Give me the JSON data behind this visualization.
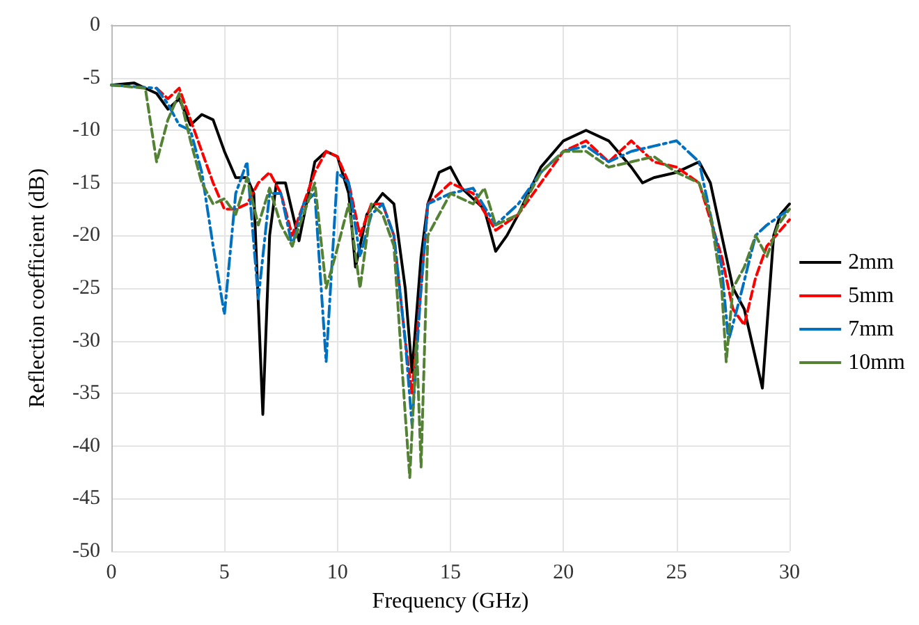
{
  "chart_data": {
    "type": "line",
    "xlabel": "Frequency (GHz)",
    "ylabel": "Reflection coefficient (dB)",
    "xlim": [
      0,
      30
    ],
    "xticks": [
      0,
      5,
      10,
      15,
      20,
      25,
      30
    ],
    "ylim": [
      -50,
      0
    ],
    "yticks": [
      -50,
      -45,
      -40,
      -35,
      -30,
      -25,
      -20,
      -15,
      -10,
      -5,
      0
    ],
    "grid": true,
    "legend": "right",
    "marker": "none",
    "series": [
      {
        "name": "2mm",
        "color": "#000000",
        "line_style": "solid",
        "x": [
          0,
          1,
          1.5,
          2,
          2.5,
          3,
          3.5,
          4,
          4.5,
          5,
          5.5,
          6,
          6.3,
          6.7,
          7,
          7.3,
          7.7,
          8.3,
          9,
          9.5,
          10,
          10.5,
          10.8,
          11.3,
          12,
          12.5,
          13,
          13.3,
          13.7,
          14,
          14.5,
          15,
          15.5,
          16.5,
          17,
          17.5,
          18,
          19,
          20,
          21,
          22,
          23,
          23.5,
          24,
          25,
          26,
          26.5,
          27,
          27.5,
          28,
          28.8,
          29.3,
          29.6,
          30
        ],
        "values": [
          -5.7,
          -5.5,
          -6,
          -6.5,
          -8,
          -7,
          -9.5,
          -8.5,
          -9,
          -12,
          -14.5,
          -14.5,
          -16,
          -37,
          -20,
          -15,
          -15,
          -20.5,
          -13,
          -12,
          -12.5,
          -16,
          -23,
          -18,
          -16,
          -17,
          -25,
          -33,
          -22,
          -17,
          -14,
          -13.5,
          -15.5,
          -17.5,
          -21.5,
          -20,
          -18,
          -13.5,
          -11,
          -10,
          -11,
          -13.5,
          -15,
          -14.5,
          -14,
          -13,
          -15,
          -20,
          -25,
          -27,
          -34.5,
          -20,
          -18,
          -17
        ]
      },
      {
        "name": "5mm",
        "color": "#ff0000",
        "line_style": "dashed",
        "x": [
          2,
          2.5,
          3,
          3.5,
          4,
          4.5,
          5,
          5.5,
          6,
          6.5,
          7,
          7.5,
          8,
          8.5,
          9,
          9.5,
          10,
          10.5,
          11,
          11.5,
          12,
          12.5,
          13,
          13.3,
          13.7,
          14,
          15,
          16,
          17,
          18,
          19,
          20,
          21,
          22,
          23,
          24,
          25,
          26,
          27,
          27.5,
          28,
          28.5,
          29,
          30
        ],
        "values": [
          -6,
          -7,
          -6,
          -9,
          -12,
          -15,
          -17.5,
          -17.5,
          -17,
          -15,
          -14,
          -16,
          -20,
          -17,
          -14,
          -12,
          -12.5,
          -15,
          -20,
          -17,
          -17,
          -20,
          -30,
          -35,
          -25,
          -17,
          -15,
          -16,
          -19.5,
          -18,
          -15,
          -12,
          -11,
          -13,
          -11,
          -13,
          -13.5,
          -15,
          -22,
          -27,
          -28.5,
          -24,
          -21,
          -18.5
        ]
      },
      {
        "name": "7mm",
        "color": "#0070c0",
        "line_style": "dotted",
        "x": [
          0,
          2,
          2.5,
          3,
          3.5,
          4,
          4.5,
          5,
          5.5,
          6,
          6.5,
          7,
          7.5,
          8,
          8.5,
          9,
          9.5,
          10,
          10.5,
          11,
          11.5,
          12,
          12.5,
          13,
          13.3,
          13.7,
          14,
          15,
          16,
          17,
          18,
          19,
          20,
          21,
          22,
          23,
          24,
          25,
          26,
          27,
          27.3,
          27.8,
          28.5,
          29,
          30
        ],
        "values": [
          -5.7,
          -6,
          -7.5,
          -9.5,
          -10,
          -14,
          -21,
          -27.5,
          -16,
          -13,
          -26,
          -16,
          -16,
          -21,
          -17,
          -16,
          -32,
          -14,
          -15,
          -22,
          -18,
          -17,
          -20,
          -30,
          -38,
          -25,
          -17,
          -16,
          -15.5,
          -19,
          -17,
          -14,
          -12,
          -11.5,
          -13,
          -12,
          -11.5,
          -11,
          -13,
          -23,
          -30,
          -26,
          -20,
          -19,
          -17.5
        ]
      },
      {
        "name": "10mm",
        "color": "#548235",
        "line_style": "dashed",
        "x": [
          0,
          1.5,
          2,
          2.5,
          3,
          3.5,
          4,
          4.5,
          5,
          5.5,
          6,
          6.5,
          7,
          7.5,
          8,
          8.5,
          9,
          9.5,
          9.9,
          10.5,
          11,
          11.5,
          12,
          12.5,
          13,
          13.2,
          13.5,
          13.7,
          14,
          15,
          16,
          16.5,
          17,
          18,
          19,
          20,
          21,
          22,
          23,
          24,
          25,
          26,
          26.5,
          27,
          27.2,
          27.5,
          28,
          28.5,
          29,
          29.5,
          30
        ],
        "values": [
          -5.7,
          -6,
          -13,
          -9,
          -6.5,
          -11,
          -15,
          -17,
          -16.5,
          -18,
          -14.5,
          -19,
          -15.5,
          -19,
          -21,
          -18,
          -15,
          -25,
          -22,
          -17,
          -25,
          -17,
          -18,
          -21,
          -37,
          -43,
          -30,
          -42,
          -20,
          -16,
          -17,
          -15.5,
          -19,
          -18,
          -14,
          -12,
          -12,
          -13.5,
          -13,
          -12.5,
          -14,
          -15,
          -18,
          -25,
          -32,
          -25,
          -23,
          -20,
          -22,
          -19,
          -17.5
        ]
      }
    ]
  }
}
